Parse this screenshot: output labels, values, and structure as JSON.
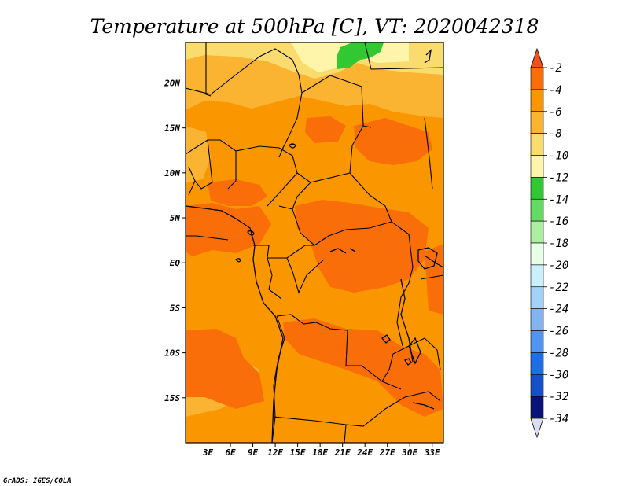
{
  "title": "Temperature at 500hPa [C], VT: 2020042318",
  "credit": "GrADS: IGES/COLA",
  "chart_data": {
    "type": "heatmap",
    "title": "Temperature at 500hPa [C], VT: 2020042318",
    "x_ticks": [
      "3E",
      "6E",
      "9E",
      "12E",
      "15E",
      "18E",
      "21E",
      "24E",
      "27E",
      "30E",
      "33E"
    ],
    "y_ticks": [
      "20N",
      "15N",
      "10N",
      "5N",
      "EQ",
      "5S",
      "10S",
      "15S"
    ],
    "xlim": [
      0,
      34.5
    ],
    "ylim": [
      -20,
      24.5
    ],
    "colorbar": {
      "labels": [
        "-2",
        "-4",
        "-6",
        "-8",
        "-10",
        "-12",
        "-14",
        "-16",
        "-18",
        "-20",
        "-22",
        "-24",
        "-26",
        "-28",
        "-30",
        "-32",
        "-34"
      ],
      "colors": [
        "#f0501e",
        "#fa6e0a",
        "#fa9600",
        "#fab432",
        "#fadc6e",
        "#fff5aa",
        "#32c832",
        "#64dc64",
        "#aaf0a0",
        "#e6ffe6",
        "#c8f0ff",
        "#a0d2fa",
        "#82b4f0",
        "#5096f0",
        "#1e6ee6",
        "#1450c8",
        "#0a1478",
        "#dcdcf5"
      ]
    },
    "fields": {
      "base_color": "#fa9600",
      "warm_color": "#fa6e0a",
      "cool_color": "#fab432",
      "cooler_color": "#fadc6e",
      "coldest_color": "#fff5aa",
      "green_color": "#32c832"
    }
  }
}
